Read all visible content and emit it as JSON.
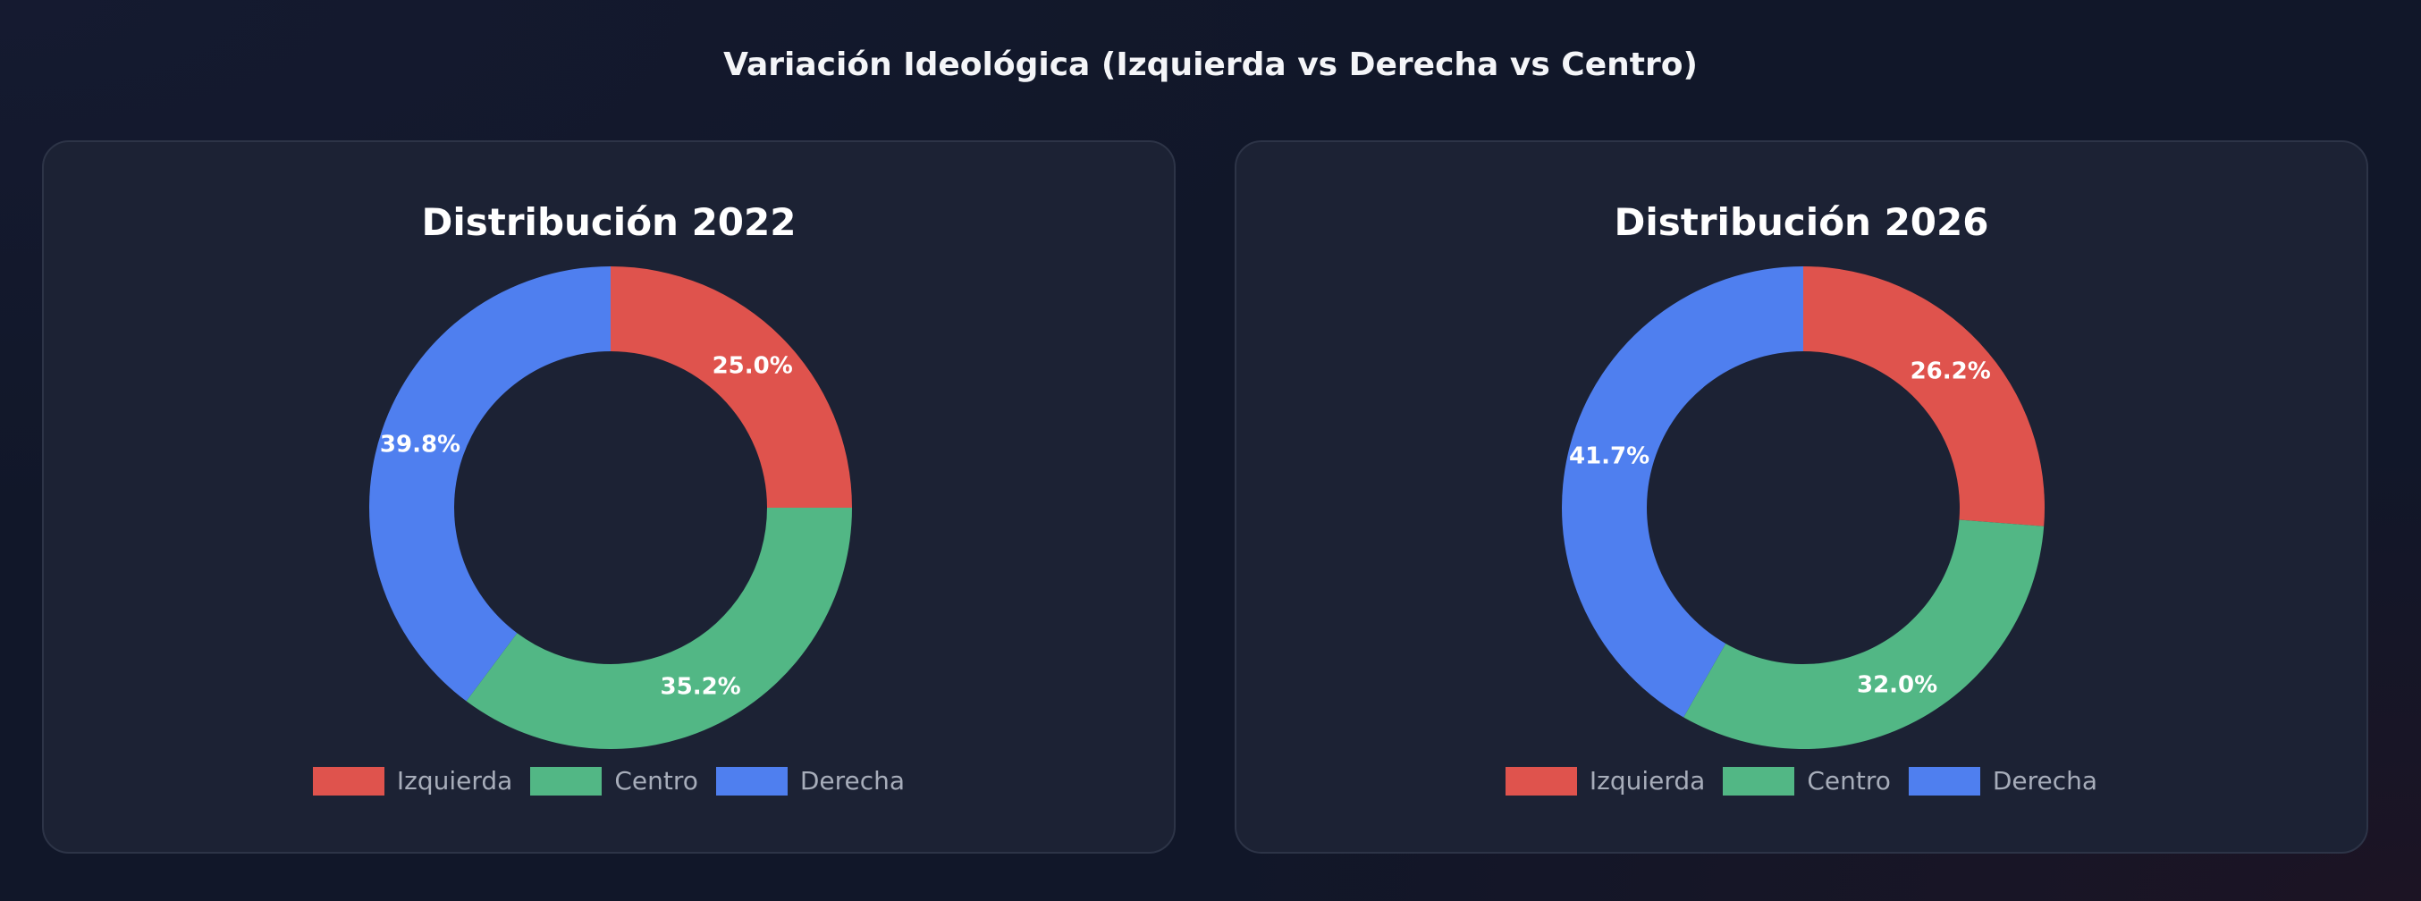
{
  "page": {
    "title": "Variación Ideológica (Izquierda vs Derecha vs Centro)"
  },
  "colors": {
    "Izquierda": "#df534d",
    "Centro": "#52b785",
    "Derecha": "#4f7fef"
  },
  "chart_data": [
    {
      "type": "pie",
      "donut": true,
      "title": "Distribución 2022",
      "categories": [
        "Izquierda",
        "Centro",
        "Derecha"
      ],
      "values": [
        25.0,
        35.2,
        39.8
      ],
      "labels": [
        "25.0%",
        "35.2%",
        "39.8%"
      ],
      "legend": {
        "position": "bottom",
        "entries": [
          "Izquierda",
          "Centro",
          "Derecha"
        ]
      }
    },
    {
      "type": "pie",
      "donut": true,
      "title": "Distribución 2026",
      "categories": [
        "Izquierda",
        "Centro",
        "Derecha"
      ],
      "values": [
        26.2,
        32.0,
        41.7
      ],
      "labels": [
        "26.2%",
        "32.0%",
        "41.7%"
      ],
      "legend": {
        "position": "bottom",
        "entries": [
          "Izquierda",
          "Centro",
          "Derecha"
        ]
      }
    }
  ]
}
